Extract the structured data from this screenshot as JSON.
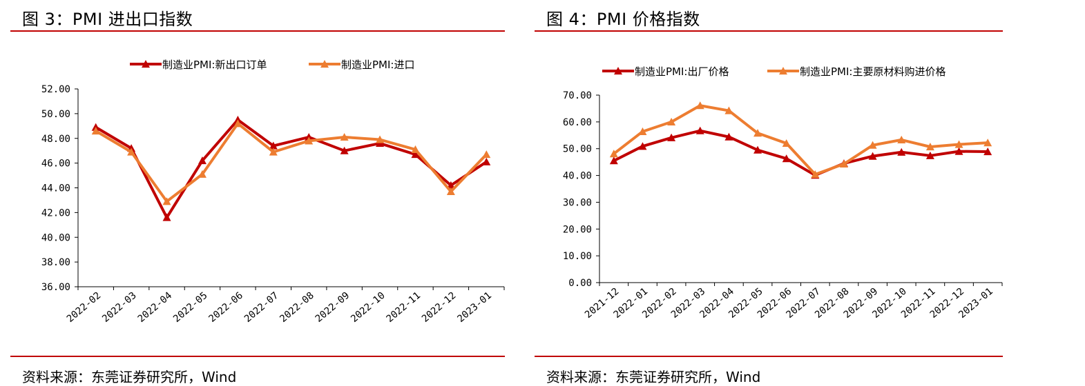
{
  "figures": [
    {
      "title": "图 3：PMI 进出口指数",
      "source": "资料来源：东莞证券研究所，Wind"
    },
    {
      "title": "图 4：PMI 价格指数",
      "source": "资料来源：东莞证券研究所，Wind"
    }
  ],
  "chart_data": [
    {
      "type": "line",
      "title": "",
      "categories": [
        "2022-02",
        "2022-03",
        "2022-04",
        "2022-05",
        "2022-06",
        "2022-07",
        "2022-08",
        "2022-09",
        "2022-10",
        "2022-11",
        "2022-12",
        "2023-01"
      ],
      "series": [
        {
          "name": "制造业PMI:新出口订单",
          "color": "#c00000",
          "values": [
            48.9,
            47.2,
            41.6,
            46.2,
            49.5,
            47.4,
            48.1,
            47.0,
            47.6,
            46.7,
            44.2,
            46.1
          ]
        },
        {
          "name": "制造业PMI:进口",
          "color": "#ed7d31",
          "values": [
            48.6,
            46.9,
            42.9,
            45.1,
            49.2,
            46.9,
            47.8,
            48.1,
            47.9,
            47.1,
            43.7,
            46.7
          ]
        }
      ],
      "ylim": [
        36,
        52
      ],
      "yticks": [
        "36.00",
        "38.00",
        "40.00",
        "42.00",
        "44.00",
        "46.00",
        "48.00",
        "50.00",
        "52.00"
      ],
      "grid": false,
      "legend_position": "top"
    },
    {
      "type": "line",
      "title": "",
      "categories": [
        "2021-12",
        "2022-01",
        "2022-02",
        "2022-03",
        "2022-04",
        "2022-05",
        "2022-06",
        "2022-07",
        "2022-08",
        "2022-09",
        "2022-10",
        "2022-11",
        "2022-12",
        "2023-01"
      ],
      "series": [
        {
          "name": "制造业PMI:出厂价格",
          "color": "#c00000",
          "values": [
            45.5,
            50.9,
            54.1,
            56.7,
            54.4,
            49.5,
            46.3,
            40.1,
            44.5,
            47.2,
            48.7,
            47.4,
            49.0,
            48.9
          ]
        },
        {
          "name": "制造业PMI:主要原材料购进价格",
          "color": "#ed7d31",
          "values": [
            48.1,
            56.4,
            60.0,
            66.1,
            64.2,
            55.8,
            52.0,
            40.4,
            44.3,
            51.3,
            53.3,
            50.7,
            51.6,
            52.2
          ]
        }
      ],
      "ylim": [
        0,
        70
      ],
      "yticks": [
        "0.00",
        "10.00",
        "20.00",
        "30.00",
        "40.00",
        "50.00",
        "60.00",
        "70.00"
      ],
      "grid": false,
      "legend_position": "top"
    }
  ]
}
